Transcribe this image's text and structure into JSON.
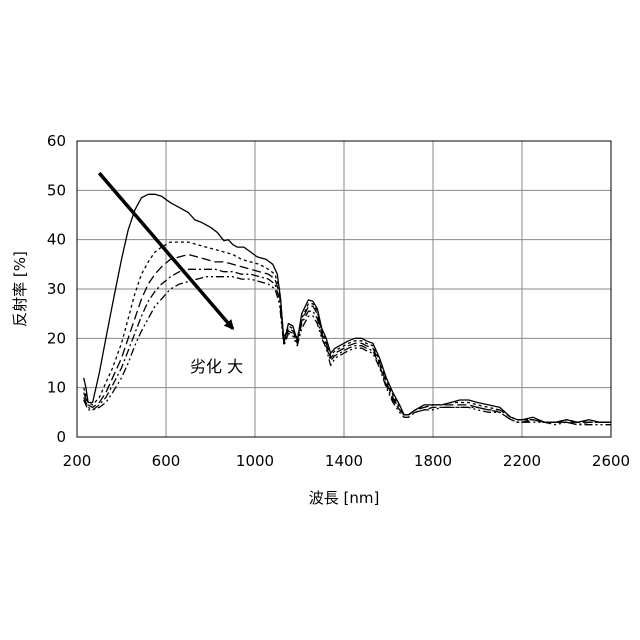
{
  "chart_data": {
    "type": "line",
    "xlabel": "波長 [nm]",
    "ylabel": "反射率 [%]",
    "xlim": [
      200,
      2600
    ],
    "ylim": [
      0,
      60
    ],
    "xticks": [
      200,
      600,
      1000,
      1400,
      1800,
      2200,
      2600
    ],
    "yticks": [
      0,
      10,
      20,
      30,
      40,
      50,
      60
    ],
    "grid": true,
    "annotation": {
      "text": "劣化 大",
      "arrow_from": [
        300,
        53.5
      ],
      "arrow_to": [
        900,
        22
      ]
    },
    "series": [
      {
        "style": "solid",
        "x": [
          230,
          240,
          250,
          270,
          300,
          330,
          360,
          400,
          430,
          460,
          490,
          520,
          550,
          580,
          620,
          660,
          700,
          730,
          760,
          800,
          830,
          860,
          880,
          900,
          920,
          950,
          980,
          1010,
          1050,
          1080,
          1100,
          1115,
          1130,
          1150,
          1170,
          1190,
          1210,
          1240,
          1260,
          1280,
          1300,
          1320,
          1340,
          1360,
          1380,
          1400,
          1420,
          1450,
          1480,
          1500,
          1530,
          1560,
          1590,
          1620,
          1650,
          1670,
          1690,
          1720,
          1760,
          1800,
          1840,
          1880,
          1920,
          1960,
          2000,
          2050,
          2100,
          2150,
          2180,
          2200,
          2250,
          2300,
          2350,
          2400,
          2450,
          2500,
          2550,
          2600
        ],
        "y": [
          12,
          10,
          7,
          7,
          13,
          20,
          27,
          36,
          42,
          46,
          48.5,
          49.2,
          49.2,
          48.8,
          47.5,
          46.5,
          45.5,
          44,
          43.5,
          42.5,
          41.5,
          39.8,
          40,
          39,
          38.5,
          38.5,
          37.5,
          36.5,
          36,
          35,
          33,
          28,
          19,
          23,
          22.5,
          19.5,
          25,
          27.8,
          27.5,
          26,
          22,
          20,
          17,
          18,
          18.5,
          19,
          19.5,
          20,
          20,
          19.5,
          19,
          16,
          12,
          9,
          6.5,
          4.5,
          4.5,
          5.5,
          6.5,
          6.5,
          6.5,
          7,
          7.5,
          7.5,
          7,
          6.5,
          6,
          4,
          3.5,
          3.5,
          4,
          3,
          3,
          3.5,
          3,
          3.5,
          3,
          3
        ]
      },
      {
        "style": "short-dash",
        "x": [
          230,
          250,
          270,
          300,
          330,
          360,
          400,
          430,
          460,
          490,
          520,
          550,
          580,
          620,
          660,
          700,
          740,
          780,
          820,
          860,
          900,
          940,
          980,
          1020,
          1060,
          1090,
          1110,
          1130,
          1150,
          1170,
          1190,
          1210,
          1240,
          1260,
          1280,
          1300,
          1320,
          1340,
          1360,
          1380,
          1400,
          1420,
          1450,
          1480,
          1500,
          1530,
          1560,
          1590,
          1620,
          1650,
          1670,
          1690,
          1720,
          1760,
          1800,
          1840,
          1880,
          1920,
          1960,
          2000,
          2050,
          2100,
          2150,
          2180,
          2200,
          2250,
          2300,
          2350,
          2400,
          2450,
          2500,
          2550,
          2600
        ],
        "y": [
          10,
          7,
          6.5,
          8,
          11,
          14,
          19,
          24,
          29,
          33,
          35.5,
          37.5,
          38.5,
          39.5,
          39.5,
          39.5,
          39,
          38.5,
          38,
          37.5,
          37,
          36,
          35.5,
          35,
          34,
          33,
          30,
          20,
          22.5,
          22,
          20,
          24,
          27,
          27,
          25.5,
          21.5,
          19.5,
          16.5,
          17.5,
          18,
          18.5,
          19,
          19.5,
          19.5,
          19,
          18.5,
          15.5,
          11.5,
          8.5,
          6,
          4.5,
          4.5,
          5.5,
          6,
          6.5,
          6.5,
          7,
          7,
          7,
          6.5,
          6,
          5.5,
          4,
          3.5,
          3.5,
          3.5,
          3,
          3,
          3.5,
          3,
          3,
          3,
          3
        ]
      },
      {
        "style": "long-dash",
        "x": [
          230,
          250,
          270,
          300,
          330,
          360,
          400,
          430,
          460,
          490,
          520,
          550,
          580,
          620,
          660,
          700,
          740,
          780,
          820,
          860,
          900,
          940,
          980,
          1020,
          1060,
          1090,
          1110,
          1130,
          1150,
          1170,
          1190,
          1210,
          1240,
          1260,
          1280,
          1300,
          1320,
          1340,
          1360,
          1380,
          1400,
          1420,
          1450,
          1480,
          1500,
          1530,
          1560,
          1590,
          1620,
          1650,
          1670,
          1690,
          1720,
          1760,
          1800,
          1840,
          1880,
          1920,
          1960,
          2000,
          2050,
          2100,
          2150,
          2180,
          2200,
          2250,
          2300,
          2350,
          2400,
          2450,
          2500,
          2550,
          2600
        ],
        "y": [
          9,
          6.5,
          6,
          7,
          9,
          12,
          16,
          20,
          24,
          28,
          31,
          33,
          34.5,
          36,
          36.5,
          37,
          36.5,
          36,
          35.5,
          35.5,
          35,
          34.5,
          34,
          33.5,
          33,
          32,
          29,
          19.5,
          22,
          21.5,
          19.5,
          23.5,
          26.5,
          26.5,
          25,
          21,
          19,
          16,
          17,
          17.5,
          18,
          18.5,
          19,
          19,
          18.5,
          18,
          15,
          11,
          8,
          5.5,
          4.5,
          4.5,
          5.5,
          6,
          6.5,
          6.5,
          6.5,
          6.5,
          6.5,
          6,
          5.5,
          5.5,
          4,
          3.5,
          3.5,
          3.5,
          3,
          3,
          3,
          3,
          3,
          3,
          3
        ]
      },
      {
        "style": "dash-dot",
        "x": [
          230,
          250,
          270,
          300,
          330,
          360,
          400,
          430,
          460,
          490,
          520,
          550,
          580,
          620,
          660,
          700,
          740,
          780,
          820,
          860,
          900,
          940,
          980,
          1020,
          1060,
          1090,
          1110,
          1130,
          1150,
          1170,
          1190,
          1210,
          1240,
          1260,
          1280,
          1300,
          1320,
          1340,
          1360,
          1380,
          1400,
          1420,
          1450,
          1480,
          1500,
          1530,
          1560,
          1590,
          1620,
          1650,
          1670,
          1690,
          1720,
          1760,
          1800,
          1840,
          1880,
          1920,
          1960,
          2000,
          2050,
          2100,
          2150,
          2180,
          2200,
          2250,
          2300,
          2350,
          2400,
          2450,
          2500,
          2550,
          2600
        ],
        "y": [
          8,
          6,
          5.5,
          6.5,
          8,
          10.5,
          14,
          17.5,
          21,
          24.5,
          27.5,
          29.5,
          31,
          32.5,
          33.5,
          34,
          34,
          34,
          34,
          33.5,
          33.5,
          33,
          33,
          32.5,
          32,
          31,
          28,
          19,
          21.5,
          21,
          19,
          23,
          25.5,
          25.5,
          24,
          20.5,
          18.5,
          15.5,
          16.5,
          17,
          17.5,
          18,
          18.5,
          18.5,
          18,
          17.5,
          14.5,
          10.5,
          7.5,
          5.5,
          4.5,
          4.5,
          5,
          5.5,
          6,
          6,
          6,
          6,
          6,
          6,
          5.5,
          5,
          3.5,
          3,
          3,
          3.5,
          3,
          3,
          3,
          2.5,
          3,
          3,
          3
        ]
      },
      {
        "style": "dash-dot-dot",
        "x": [
          230,
          250,
          270,
          300,
          330,
          360,
          400,
          430,
          460,
          490,
          520,
          550,
          580,
          620,
          660,
          700,
          740,
          780,
          820,
          860,
          900,
          940,
          980,
          1020,
          1060,
          1090,
          1110,
          1130,
          1150,
          1170,
          1190,
          1210,
          1240,
          1260,
          1280,
          1300,
          1320,
          1340,
          1360,
          1380,
          1400,
          1420,
          1450,
          1480,
          1500,
          1530,
          1560,
          1590,
          1620,
          1650,
          1670,
          1690,
          1720,
          1760,
          1800,
          1840,
          1880,
          1920,
          1960,
          2000,
          2050,
          2100,
          2150,
          2180,
          2200,
          2250,
          2300,
          2350,
          2400,
          2450,
          2500,
          2550,
          2600
        ],
        "y": [
          7.5,
          5.5,
          5.5,
          6,
          7,
          9,
          12,
          15,
          18.5,
          21.5,
          24,
          26.5,
          28,
          30,
          31,
          31.5,
          32,
          32.5,
          32.5,
          32.5,
          32.5,
          32,
          32,
          31.5,
          31,
          30,
          27,
          18.5,
          21,
          20.5,
          18.5,
          22,
          24.5,
          24.5,
          23,
          20,
          18,
          14.5,
          16,
          16.5,
          17,
          17.5,
          18,
          18,
          17.5,
          17,
          14,
          10,
          7,
          5,
          4,
          4,
          5,
          5.5,
          5.5,
          6,
          6,
          6,
          6,
          5.5,
          5,
          5,
          3.5,
          3,
          3,
          3,
          3,
          2.5,
          3,
          2.5,
          2.5,
          2.5,
          2.5
        ]
      }
    ]
  }
}
